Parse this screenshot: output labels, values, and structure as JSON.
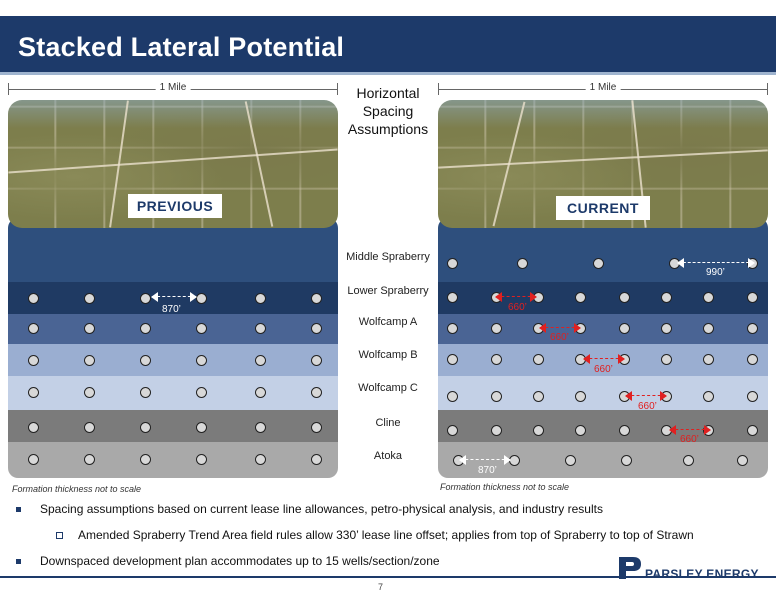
{
  "header": {
    "title": "Stacked Lateral Potential"
  },
  "left_panel": {
    "ruler_label": "1 Mile",
    "badge": "PREVIOUS",
    "spacing_labels": [
      "870’"
    ],
    "footnote": "Formation thickness not to scale"
  },
  "right_panel": {
    "ruler_label": "1 Mile",
    "badge": "CURRENT",
    "spacing_labels": [
      "990’",
      "660’",
      "660’",
      "660’",
      "660’",
      "660’",
      "870’"
    ],
    "footnote": "Formation thickness not to scale"
  },
  "center": {
    "heading": "Horizontal Spacing Assumptions",
    "zones": [
      "Middle Spraberry",
      "Lower Spraberry",
      "Wolfcamp A",
      "Wolfcamp B",
      "Wolfcamp C",
      "Cline",
      "Atoka"
    ]
  },
  "colors": {
    "brand_navy": "#1d3a6a",
    "middle_spraberry": "#2e4f7d",
    "lower_spraberry": "#1f3a63",
    "wolfcamp_a": "#4a6494",
    "wolfcamp_b": "#9aaed1",
    "wolfcamp_c": "#c3d0e6",
    "cline": "#7b7b7b",
    "atoka": "#a9a9a9",
    "spacing_red": "#e02020"
  },
  "bullets": [
    {
      "level": 1,
      "text": "Spacing assumptions based on current lease line allowances, petro-physical analysis, and industry results"
    },
    {
      "level": 2,
      "text": "Amended Spraberry Trend Area field rules allow 330’ lease line offset; applies from top of Spraberry to top of Strawn"
    },
    {
      "level": 1,
      "text": "Downspaced development plan accommodates up to 15 wells/section/zone"
    }
  ],
  "footer": {
    "page_number": "7",
    "logo_text": "PARSLEY ENERGY",
    "logo_icon": "parsley-p-logo-icon"
  }
}
